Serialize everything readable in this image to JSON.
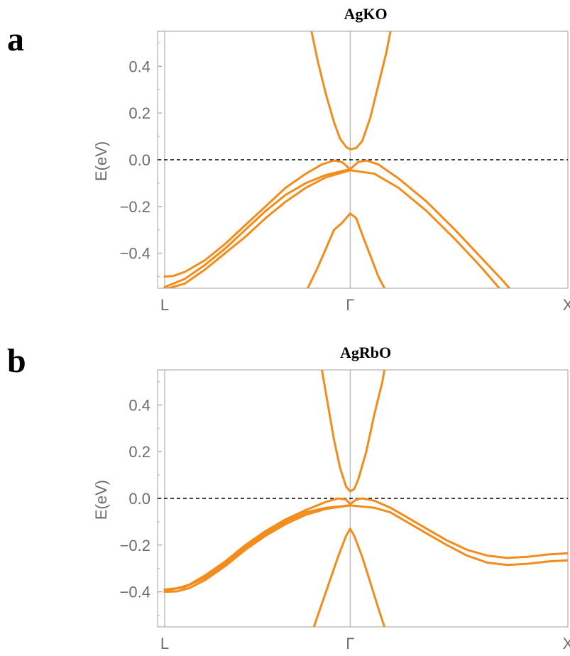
{
  "chart_data": [
    {
      "type": "line",
      "panel_label": "a",
      "title": "AgKO",
      "ylabel": "E(eV)",
      "xlabel": "",
      "ylim": [
        -0.55,
        0.55
      ],
      "xlim": [
        0,
        1
      ],
      "yticks": [
        0.4,
        0.2,
        0.0,
        -0.2,
        -0.4
      ],
      "ytick_labels": [
        "0.4",
        "0.2",
        "0.0",
        "−0.2",
        "−0.4"
      ],
      "xticks": [
        {
          "x": 0.0,
          "label": "L"
        },
        {
          "x": 0.46,
          "label": "Γ"
        },
        {
          "x": 1.0,
          "label": "X"
        }
      ],
      "fermi_level": 0.0,
      "line_color": "#f28c1c",
      "series": [
        {
          "values": [
            [
              0.364,
              0.55
            ],
            [
              0.38,
              0.42
            ],
            [
              0.4,
              0.28
            ],
            [
              0.42,
              0.16
            ],
            [
              0.435,
              0.09
            ],
            [
              0.45,
              0.055
            ],
            [
              0.46,
              0.045
            ],
            [
              0.475,
              0.05
            ],
            [
              0.49,
              0.08
            ],
            [
              0.51,
              0.18
            ],
            [
              0.53,
              0.32
            ],
            [
              0.55,
              0.46
            ],
            [
              0.56,
              0.55
            ]
          ]
        },
        {
          "values": [
            [
              0.0,
              -0.5
            ],
            [
              0.02,
              -0.498
            ],
            [
              0.05,
              -0.48
            ],
            [
              0.1,
              -0.43
            ],
            [
              0.15,
              -0.36
            ],
            [
              0.2,
              -0.28
            ],
            [
              0.25,
              -0.2
            ],
            [
              0.3,
              -0.12
            ],
            [
              0.35,
              -0.06
            ],
            [
              0.39,
              -0.02
            ],
            [
              0.42,
              -0.003
            ],
            [
              0.44,
              -0.01
            ],
            [
              0.46,
              -0.04
            ],
            [
              0.48,
              -0.01
            ],
            [
              0.5,
              -0.003
            ],
            [
              0.53,
              -0.02
            ],
            [
              0.58,
              -0.08
            ],
            [
              0.65,
              -0.18
            ],
            [
              0.72,
              -0.3
            ],
            [
              0.78,
              -0.41
            ],
            [
              0.84,
              -0.52
            ],
            [
              0.855,
              -0.55
            ]
          ]
        },
        {
          "values": [
            [
              0.0,
              -0.545
            ],
            [
              0.05,
              -0.51
            ],
            [
              0.1,
              -0.45
            ],
            [
              0.15,
              -0.38
            ],
            [
              0.2,
              -0.3
            ],
            [
              0.25,
              -0.22
            ],
            [
              0.3,
              -0.15
            ],
            [
              0.35,
              -0.1
            ],
            [
              0.4,
              -0.065
            ],
            [
              0.46,
              -0.04
            ]
          ]
        },
        {
          "values": [
            [
              0.0,
              -0.555
            ],
            [
              0.05,
              -0.53
            ],
            [
              0.1,
              -0.47
            ],
            [
              0.15,
              -0.4
            ],
            [
              0.2,
              -0.33
            ],
            [
              0.25,
              -0.25
            ],
            [
              0.3,
              -0.18
            ],
            [
              0.35,
              -0.12
            ],
            [
              0.4,
              -0.075
            ],
            [
              0.46,
              -0.045
            ],
            [
              0.52,
              -0.06
            ],
            [
              0.58,
              -0.12
            ],
            [
              0.65,
              -0.22
            ],
            [
              0.72,
              -0.34
            ],
            [
              0.78,
              -0.45
            ],
            [
              0.82,
              -0.53
            ],
            [
              0.83,
              -0.55
            ]
          ]
        },
        {
          "values": [
            [
              0.355,
              -0.55
            ],
            [
              0.38,
              -0.46
            ],
            [
              0.4,
              -0.38
            ],
            [
              0.42,
              -0.3
            ],
            [
              0.44,
              -0.27
            ],
            [
              0.46,
              -0.23
            ],
            [
              0.475,
              -0.25
            ],
            [
              0.49,
              -0.32
            ],
            [
              0.51,
              -0.41
            ],
            [
              0.53,
              -0.5
            ],
            [
              0.545,
              -0.55
            ]
          ]
        }
      ]
    },
    {
      "type": "line",
      "panel_label": "b",
      "title": "AgRbO",
      "ylabel": "E(eV)",
      "xlabel": "",
      "ylim": [
        -0.55,
        0.55
      ],
      "xlim": [
        0,
        1
      ],
      "yticks": [
        0.4,
        0.2,
        0.0,
        -0.2,
        -0.4
      ],
      "ytick_labels": [
        "0.4",
        "0.2",
        "0.0",
        "−0.2",
        "−0.4"
      ],
      "xticks": [
        {
          "x": 0.0,
          "label": "L"
        },
        {
          "x": 0.46,
          "label": "Γ"
        },
        {
          "x": 1.0,
          "label": "X"
        }
      ],
      "fermi_level": 0.0,
      "line_color": "#f28c1c",
      "series": [
        {
          "values": [
            [
              0.39,
              0.55
            ],
            [
              0.405,
              0.4
            ],
            [
              0.42,
              0.25
            ],
            [
              0.435,
              0.13
            ],
            [
              0.45,
              0.05
            ],
            [
              0.46,
              0.03
            ],
            [
              0.47,
              0.04
            ],
            [
              0.48,
              0.08
            ],
            [
              0.5,
              0.2
            ],
            [
              0.52,
              0.36
            ],
            [
              0.54,
              0.5
            ],
            [
              0.545,
              0.55
            ]
          ]
        },
        {
          "values": [
            [
              0.0,
              -0.39
            ],
            [
              0.03,
              -0.385
            ],
            [
              0.06,
              -0.37
            ],
            [
              0.1,
              -0.33
            ],
            [
              0.15,
              -0.27
            ],
            [
              0.2,
              -0.2
            ],
            [
              0.25,
              -0.14
            ],
            [
              0.3,
              -0.09
            ],
            [
              0.35,
              -0.05
            ],
            [
              0.4,
              -0.015
            ],
            [
              0.43,
              0.0
            ],
            [
              0.45,
              -0.005
            ],
            [
              0.46,
              -0.025
            ],
            [
              0.475,
              -0.005
            ],
            [
              0.49,
              0.0
            ],
            [
              0.52,
              -0.01
            ],
            [
              0.56,
              -0.04
            ],
            [
              0.6,
              -0.08
            ],
            [
              0.65,
              -0.13
            ],
            [
              0.7,
              -0.18
            ],
            [
              0.75,
              -0.22
            ],
            [
              0.8,
              -0.245
            ],
            [
              0.85,
              -0.255
            ],
            [
              0.9,
              -0.25
            ],
            [
              0.95,
              -0.24
            ],
            [
              1.0,
              -0.235
            ]
          ]
        },
        {
          "values": [
            [
              0.0,
              -0.395
            ],
            [
              0.05,
              -0.38
            ],
            [
              0.1,
              -0.34
            ],
            [
              0.15,
              -0.28
            ],
            [
              0.2,
              -0.21
            ],
            [
              0.25,
              -0.15
            ],
            [
              0.3,
              -0.1
            ],
            [
              0.35,
              -0.06
            ],
            [
              0.4,
              -0.04
            ],
            [
              0.46,
              -0.03
            ]
          ]
        },
        {
          "values": [
            [
              0.0,
              -0.4
            ],
            [
              0.03,
              -0.398
            ],
            [
              0.06,
              -0.385
            ],
            [
              0.1,
              -0.35
            ],
            [
              0.15,
              -0.29
            ],
            [
              0.2,
              -0.22
            ],
            [
              0.25,
              -0.16
            ],
            [
              0.3,
              -0.11
            ],
            [
              0.35,
              -0.07
            ],
            [
              0.4,
              -0.045
            ],
            [
              0.46,
              -0.03
            ],
            [
              0.52,
              -0.04
            ],
            [
              0.56,
              -0.06
            ],
            [
              0.6,
              -0.1
            ],
            [
              0.65,
              -0.15
            ],
            [
              0.7,
              -0.2
            ],
            [
              0.75,
              -0.245
            ],
            [
              0.8,
              -0.275
            ],
            [
              0.85,
              -0.285
            ],
            [
              0.9,
              -0.28
            ],
            [
              0.95,
              -0.27
            ],
            [
              1.0,
              -0.265
            ]
          ]
        },
        {
          "values": [
            [
              0.37,
              -0.55
            ],
            [
              0.39,
              -0.45
            ],
            [
              0.41,
              -0.35
            ],
            [
              0.43,
              -0.25
            ],
            [
              0.45,
              -0.16
            ],
            [
              0.46,
              -0.13
            ],
            [
              0.47,
              -0.16
            ],
            [
              0.49,
              -0.25
            ],
            [
              0.51,
              -0.36
            ],
            [
              0.53,
              -0.47
            ],
            [
              0.545,
              -0.55
            ]
          ]
        }
      ]
    }
  ]
}
